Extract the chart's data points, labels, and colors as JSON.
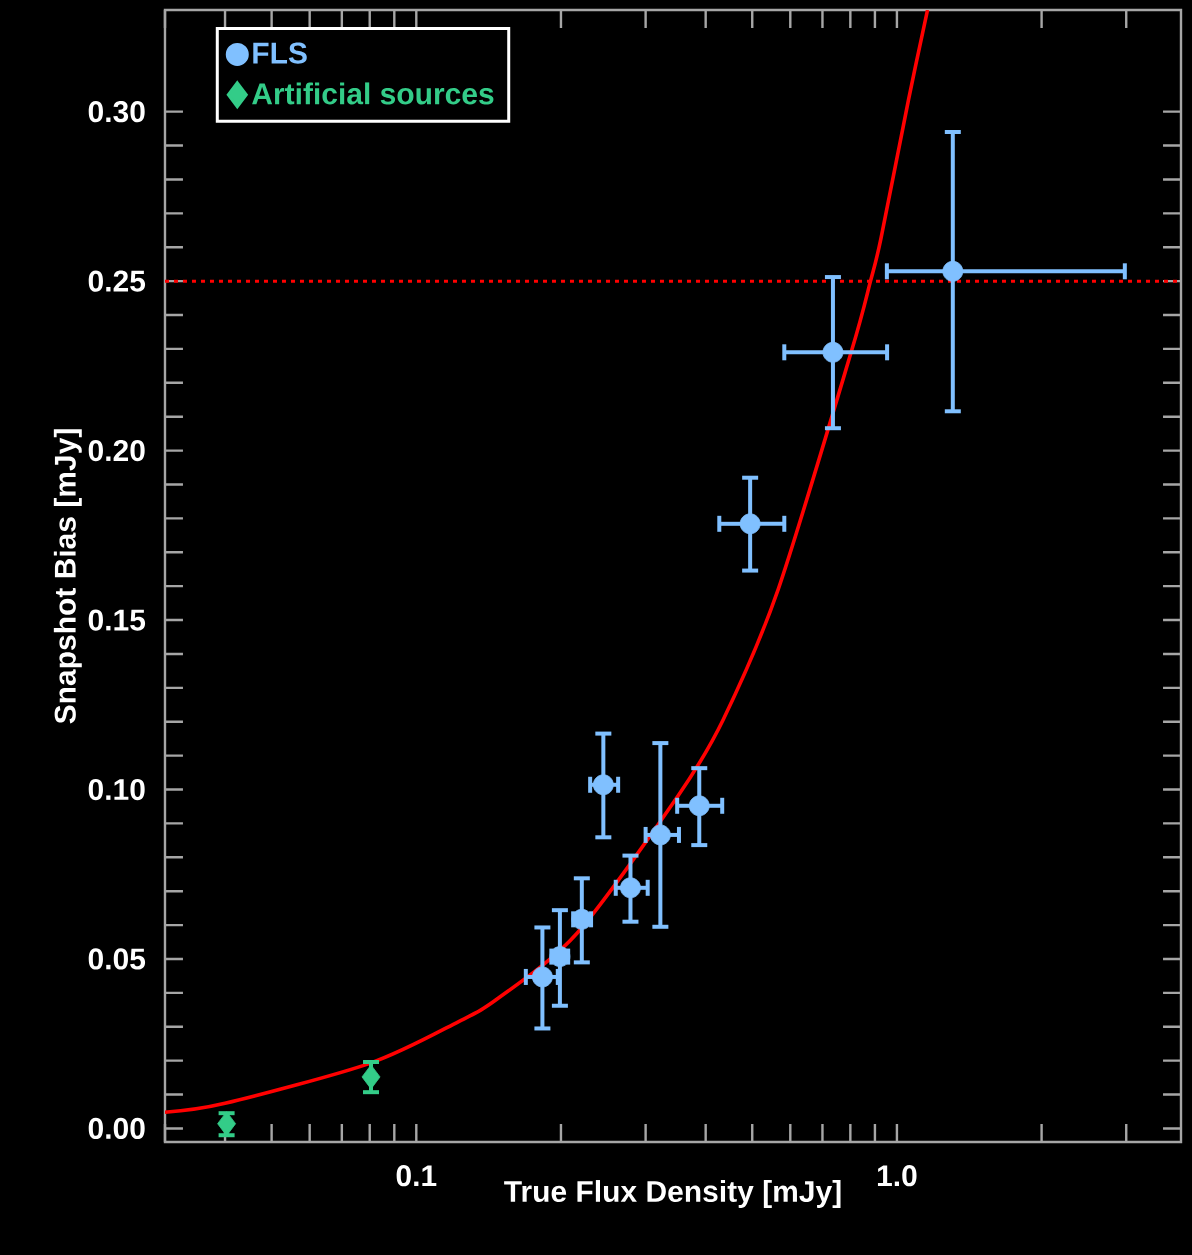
{
  "chart_data": {
    "type": "scatter",
    "xlabel": "True Flux Density [mJy]",
    "ylabel": "Snapshot Bias [mJy]",
    "log": "x",
    "legend": "top left",
    "xlim": [
      0.03,
      3.9
    ],
    "ylim": [
      -0.004,
      0.33
    ],
    "xticks": [
      0.1,
      {
        "value": 1,
        "label": "1.0"
      }
    ],
    "yticks": [
      {
        "value": 0,
        "label": "0.00"
      },
      {
        "value": 0.05,
        "label": "0.05"
      },
      {
        "value": 0.1,
        "label": "0.10"
      },
      {
        "value": 0.15,
        "label": "0.15"
      },
      {
        "value": 0.2,
        "label": "0.20"
      },
      {
        "value": 0.25,
        "label": "0.25"
      },
      {
        "value": 0.3,
        "label": "0.30"
      }
    ],
    "ref_lines": [
      {
        "axis": "y",
        "value": 0.25,
        "color": "#ff0000",
        "line_style": "dotted"
      }
    ],
    "series": [
      {
        "type": "line",
        "color": "#ff0000",
        "marker": "none",
        "line_style": "solid",
        "x": [
          0.03,
          0.04,
          0.08,
          0.122,
          0.148,
          0.216,
          0.35,
          0.435,
          0.566,
          0.803,
          0.88,
          0.926,
          1.058,
          1.158
        ],
        "values": [
          0.0048,
          0.0074,
          0.0192,
          0.0314,
          0.0384,
          0.0576,
          0.098,
          0.1206,
          0.159,
          0.229,
          0.2497,
          0.2625,
          0.3038,
          0.33
        ]
      },
      {
        "name": "FLS",
        "color": "#80c0ff",
        "marker": "circle",
        "x": [
          0.183,
          0.199,
          0.221,
          0.245,
          0.279,
          0.322,
          0.388,
          0.495,
          0.736,
          1.307
        ],
        "values": [
          0.0447,
          0.0507,
          0.0617,
          0.1014,
          0.071,
          0.0866,
          0.0952,
          0.1784,
          0.229,
          0.2529
        ],
        "errors": [
          [
            0.0295,
            0.0593
          ],
          [
            0.0362,
            0.0644
          ],
          [
            0.049,
            0.0738
          ],
          [
            0.0859,
            0.1165
          ],
          [
            0.061,
            0.0805
          ],
          [
            0.0595,
            0.1137
          ],
          [
            0.0836,
            0.1063
          ],
          [
            0.1646,
            0.192
          ],
          [
            0.2066,
            0.2512
          ],
          [
            0.2116,
            0.294
          ]
        ],
        "xerrors": [
          [
            0.169,
            0.197
          ],
          [
            0.191,
            0.207
          ],
          [
            0.212,
            0.231
          ],
          [
            0.23,
            0.263
          ],
          [
            0.26,
            0.303
          ],
          [
            0.3,
            0.352
          ],
          [
            0.349,
            0.433
          ],
          [
            0.427,
            0.583
          ],
          [
            0.583,
            0.954
          ],
          [
            0.953,
            2.98
          ]
        ]
      },
      {
        "name": "Artificial sources",
        "color": "#33cc88",
        "marker": "diamond",
        "x": [
          0.0403,
          0.0805
        ],
        "values": [
          0.0014,
          0.0152
        ],
        "errors": [
          [
            -0.002,
            0.0045
          ],
          [
            0.0107,
            0.0196
          ]
        ]
      }
    ]
  }
}
